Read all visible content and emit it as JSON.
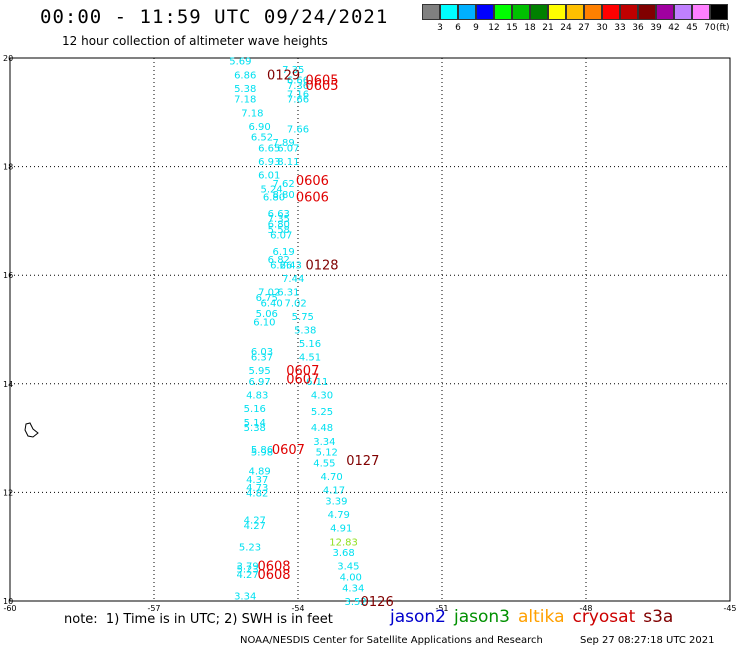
{
  "title": "00:00 - 11:59 UTC 09/24/2021",
  "subtitle": "12 hour collection of altimeter wave heights",
  "colorbar": {
    "colors": [
      "#808080",
      "#00ffff",
      "#00b0ff",
      "#0000ff",
      "#00ff00",
      "#00c000",
      "#008000",
      "#ffff00",
      "#ffc000",
      "#ff8000",
      "#ff0000",
      "#c00000",
      "#800000",
      "#a000a0",
      "#c080ff",
      "#ff80ff",
      "#000000"
    ],
    "labels": [
      "3",
      "6",
      "9",
      "12",
      "15",
      "18",
      "21",
      "24",
      "27",
      "30",
      "33",
      "36",
      "39",
      "42",
      "45",
      "70"
    ],
    "unit": "(ft)"
  },
  "note": "note:  1) Time is in UTC; 2) SWH is in feet",
  "legend": [
    {
      "name": "jason2",
      "color": "#0000cc"
    },
    {
      "name": "jason3",
      "color": "#009000"
    },
    {
      "name": "altika",
      "color": "#ffa000"
    },
    {
      "name": "cryosat",
      "color": "#cc0000"
    },
    {
      "name": "s3a",
      "color": "#800000"
    }
  ],
  "footer": {
    "left": "NOAA/NESDIS Center for Satellite Applications and Research",
    "right": "Sep 27 08:27:18 UTC 2021"
  },
  "chart_data": {
    "type": "scatter",
    "xlim": [
      -60,
      -45
    ],
    "ylim": [
      10,
      20
    ],
    "xticks": [
      -60,
      -57,
      -54,
      -51,
      -48,
      -45
    ],
    "yticks": [
      10,
      12,
      14,
      16,
      18,
      20
    ],
    "grid": true,
    "swh_color": "#00e0f0",
    "swh_high_color": "#90e020",
    "pass_colors": {
      "cryosat": "#e00000",
      "s3a": "#800000"
    },
    "swh_points": [
      {
        "x": -55.2,
        "y": 19.95,
        "v": "5.69"
      },
      {
        "x": -55.1,
        "y": 19.7,
        "v": "6.86"
      },
      {
        "x": -54.1,
        "y": 19.8,
        "v": "7.35"
      },
      {
        "x": -54.0,
        "y": 19.6,
        "v": "6.66"
      },
      {
        "x": -54.0,
        "y": 19.5,
        "v": "7.36"
      },
      {
        "x": -55.1,
        "y": 19.45,
        "v": "5.38"
      },
      {
        "x": -54.0,
        "y": 19.35,
        "v": "7.16"
      },
      {
        "x": -54.0,
        "y": 19.25,
        "v": "7.66"
      },
      {
        "x": -55.1,
        "y": 19.25,
        "v": "7.18"
      },
      {
        "x": -54.95,
        "y": 19.0,
        "v": "7.18"
      },
      {
        "x": -54.8,
        "y": 18.75,
        "v": "6.90"
      },
      {
        "x": -54.0,
        "y": 18.7,
        "v": "7.66"
      },
      {
        "x": -54.75,
        "y": 18.55,
        "v": "6.52"
      },
      {
        "x": -54.3,
        "y": 18.45,
        "v": "7.89"
      },
      {
        "x": -54.6,
        "y": 18.35,
        "v": "6.65"
      },
      {
        "x": -54.2,
        "y": 18.35,
        "v": "6.07"
      },
      {
        "x": -54.6,
        "y": 18.1,
        "v": "6.93"
      },
      {
        "x": -54.2,
        "y": 18.1,
        "v": "8.11"
      },
      {
        "x": -54.6,
        "y": 17.85,
        "v": "6.01"
      },
      {
        "x": -54.3,
        "y": 17.7,
        "v": "7.62"
      },
      {
        "x": -54.55,
        "y": 17.6,
        "v": "5.24"
      },
      {
        "x": -54.3,
        "y": 17.5,
        "v": "8.80"
      },
      {
        "x": -54.5,
        "y": 17.45,
        "v": "6.80"
      },
      {
        "x": -54.4,
        "y": 17.15,
        "v": "6.63"
      },
      {
        "x": -54.4,
        "y": 17.05,
        "v": "7.35"
      },
      {
        "x": -54.4,
        "y": 16.95,
        "v": "6.80"
      },
      {
        "x": -54.4,
        "y": 16.85,
        "v": "5.58"
      },
      {
        "x": -54.35,
        "y": 16.75,
        "v": "6.07"
      },
      {
        "x": -54.3,
        "y": 16.45,
        "v": "6.19"
      },
      {
        "x": -54.4,
        "y": 16.3,
        "v": "6.82"
      },
      {
        "x": -54.15,
        "y": 16.2,
        "v": "6.43"
      },
      {
        "x": -54.35,
        "y": 16.2,
        "v": "6.26"
      },
      {
        "x": -54.1,
        "y": 15.95,
        "v": "7.44"
      },
      {
        "x": -54.6,
        "y": 15.7,
        "v": "7.02"
      },
      {
        "x": -54.2,
        "y": 15.7,
        "v": "6.31"
      },
      {
        "x": -54.65,
        "y": 15.6,
        "v": "6.75"
      },
      {
        "x": -54.55,
        "y": 15.5,
        "v": "6.40"
      },
      {
        "x": -54.05,
        "y": 15.5,
        "v": "7.02"
      },
      {
        "x": -54.65,
        "y": 15.3,
        "v": "5.06"
      },
      {
        "x": -53.9,
        "y": 15.25,
        "v": "5.75"
      },
      {
        "x": -54.7,
        "y": 15.15,
        "v": "6.10"
      },
      {
        "x": -53.85,
        "y": 15.0,
        "v": "5.38"
      },
      {
        "x": -53.75,
        "y": 14.75,
        "v": "5.16"
      },
      {
        "x": -54.75,
        "y": 14.6,
        "v": "6.03"
      },
      {
        "x": -53.75,
        "y": 14.5,
        "v": "4.51"
      },
      {
        "x": -54.75,
        "y": 14.5,
        "v": "6.37"
      },
      {
        "x": -54.8,
        "y": 14.25,
        "v": "5.95"
      },
      {
        "x": -54.8,
        "y": 14.05,
        "v": "6.97"
      },
      {
        "x": -53.6,
        "y": 14.05,
        "v": "6.11"
      },
      {
        "x": -54.85,
        "y": 13.8,
        "v": "4.83"
      },
      {
        "x": -53.5,
        "y": 13.8,
        "v": "4.30"
      },
      {
        "x": -54.9,
        "y": 13.55,
        "v": "5.16"
      },
      {
        "x": -53.5,
        "y": 13.5,
        "v": "5.25"
      },
      {
        "x": -54.9,
        "y": 13.3,
        "v": "5.14"
      },
      {
        "x": -54.9,
        "y": 13.2,
        "v": "5.38"
      },
      {
        "x": -53.5,
        "y": 13.2,
        "v": "4.48"
      },
      {
        "x": -53.45,
        "y": 12.95,
        "v": "3.34"
      },
      {
        "x": -53.4,
        "y": 12.75,
        "v": "5.12"
      },
      {
        "x": -54.75,
        "y": 12.8,
        "v": "5.86"
      },
      {
        "x": -54.75,
        "y": 12.75,
        "v": "5.98"
      },
      {
        "x": -53.45,
        "y": 12.55,
        "v": "4.55"
      },
      {
        "x": -53.3,
        "y": 12.3,
        "v": "4.70"
      },
      {
        "x": -54.8,
        "y": 12.4,
        "v": "4.89"
      },
      {
        "x": -54.85,
        "y": 12.25,
        "v": "4.37"
      },
      {
        "x": -53.25,
        "y": 12.05,
        "v": "4.17"
      },
      {
        "x": -54.85,
        "y": 12.1,
        "v": "4.73"
      },
      {
        "x": -54.85,
        "y": 12.0,
        "v": "4.82"
      },
      {
        "x": -53.2,
        "y": 11.85,
        "v": "3.39"
      },
      {
        "x": -53.15,
        "y": 11.6,
        "v": "4.79"
      },
      {
        "x": -54.9,
        "y": 11.5,
        "v": "4.27"
      },
      {
        "x": -54.9,
        "y": 11.4,
        "v": "4.27"
      },
      {
        "x": -53.1,
        "y": 11.35,
        "v": "4.91"
      },
      {
        "x": -53.05,
        "y": 11.1,
        "v": "12.83",
        "high": true
      },
      {
        "x": -55.0,
        "y": 11.0,
        "v": "5.23"
      },
      {
        "x": -53.05,
        "y": 10.9,
        "v": "3.68"
      },
      {
        "x": -55.05,
        "y": 10.65,
        "v": "3.79"
      },
      {
        "x": -55.05,
        "y": 10.6,
        "v": "5.23"
      },
      {
        "x": -52.95,
        "y": 10.65,
        "v": "3.45"
      },
      {
        "x": -55.05,
        "y": 10.5,
        "v": "4.27"
      },
      {
        "x": -52.9,
        "y": 10.45,
        "v": "4.00"
      },
      {
        "x": -52.85,
        "y": 10.25,
        "v": "4.34"
      },
      {
        "x": -55.1,
        "y": 10.1,
        "v": "3.34"
      },
      {
        "x": -52.8,
        "y": 10.0,
        "v": "3.52"
      }
    ],
    "pass_labels": [
      {
        "x": -54.3,
        "y": 19.7,
        "v": "0129",
        "sat": "s3a"
      },
      {
        "x": -53.5,
        "y": 19.6,
        "v": "0605",
        "sat": "cryosat"
      },
      {
        "x": -53.5,
        "y": 19.5,
        "v": "0605",
        "sat": "cryosat"
      },
      {
        "x": -53.7,
        "y": 17.75,
        "v": "0606",
        "sat": "cryosat"
      },
      {
        "x": -53.7,
        "y": 17.45,
        "v": "0606",
        "sat": "cryosat"
      },
      {
        "x": -53.5,
        "y": 16.2,
        "v": "0128",
        "sat": "s3a"
      },
      {
        "x": -53.9,
        "y": 14.25,
        "v": "0607",
        "sat": "cryosat"
      },
      {
        "x": -53.9,
        "y": 14.1,
        "v": "0607",
        "sat": "cryosat"
      },
      {
        "x": -54.2,
        "y": 12.8,
        "v": "0607",
        "sat": "cryosat"
      },
      {
        "x": -52.65,
        "y": 12.6,
        "v": "0127",
        "sat": "s3a"
      },
      {
        "x": -54.5,
        "y": 10.65,
        "v": "0608",
        "sat": "cryosat"
      },
      {
        "x": -54.5,
        "y": 10.5,
        "v": "0608",
        "sat": "cryosat"
      },
      {
        "x": -52.35,
        "y": 10.0,
        "v": "0126",
        "sat": "s3a"
      }
    ]
  }
}
